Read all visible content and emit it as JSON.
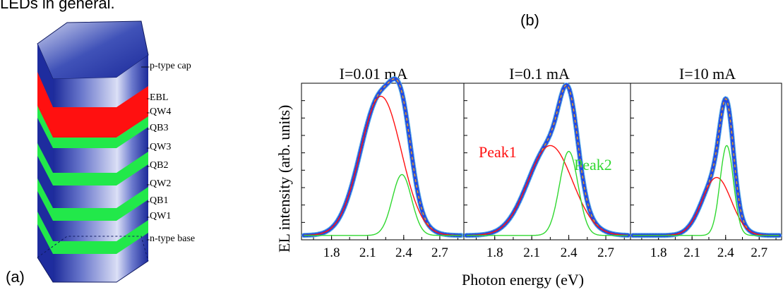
{
  "intro_text": "LEDs in general.",
  "panel_a": {
    "label": "(a)",
    "layers": [
      "p-type cap",
      "EBL",
      "QW4",
      "QB3",
      "QW3",
      "QB2",
      "QW2",
      "QB1",
      "QW1",
      "n-type base"
    ],
    "colors": {
      "barrier": "#3a4bb8",
      "qw": "#22e84a",
      "ebl": "#ff1010"
    }
  },
  "panel_b": {
    "label": "(b)",
    "xlabel": "Photon energy (eV)",
    "ylabel": "EL intensity (arb. units)",
    "peak1_label": "Peak1",
    "peak2_label": "Peak2",
    "colors": {
      "data": "#2448e0",
      "data_edge": "#5ab0e8",
      "fit": "#e8a020",
      "peak1": "#ff1010",
      "peak2": "#30d830"
    }
  },
  "chart_data": [
    {
      "type": "line",
      "title": "I=0.01 mA",
      "xlabel": "Photon energy (eV)",
      "ylabel": "EL intensity (arb. units)",
      "xlim": [
        1.55,
        2.9
      ],
      "ylim": [
        0,
        1.08
      ],
      "xticks": [
        "1.8",
        "2.1",
        "2.4",
        "2.7"
      ],
      "series": [
        {
          "name": "Peak1",
          "values": [
            {
              "x": 1.6,
              "y": 0.0
            },
            {
              "x": 1.8,
              "y": 0.04
            },
            {
              "x": 2.0,
              "y": 0.55
            },
            {
              "x": 2.2,
              "y": 0.96
            },
            {
              "x": 2.4,
              "y": 0.55
            },
            {
              "x": 2.6,
              "y": 0.04
            },
            {
              "x": 2.85,
              "y": 0.0
            }
          ]
        },
        {
          "name": "Peak2",
          "values": [
            {
              "x": 2.2,
              "y": 0.0
            },
            {
              "x": 2.3,
              "y": 0.18
            },
            {
              "x": 2.38,
              "y": 0.42
            },
            {
              "x": 2.46,
              "y": 0.18
            },
            {
              "x": 2.58,
              "y": 0.0
            }
          ]
        }
      ]
    },
    {
      "type": "line",
      "title": "I=0.1 mA",
      "xlim": [
        1.55,
        2.9
      ],
      "ylim": [
        0,
        1.08
      ],
      "xticks": [
        "1.8",
        "2.1",
        "2.4",
        "2.7"
      ],
      "series": [
        {
          "name": "Peak1",
          "values": [
            {
              "x": 1.8,
              "y": 0.02
            },
            {
              "x": 2.05,
              "y": 0.38
            },
            {
              "x": 2.25,
              "y": 0.62
            },
            {
              "x": 2.45,
              "y": 0.38
            },
            {
              "x": 2.7,
              "y": 0.02
            }
          ]
        },
        {
          "name": "Peak2",
          "values": [
            {
              "x": 2.25,
              "y": 0.05
            },
            {
              "x": 2.33,
              "y": 0.38
            },
            {
              "x": 2.4,
              "y": 0.58
            },
            {
              "x": 2.48,
              "y": 0.38
            },
            {
              "x": 2.58,
              "y": 0.02
            }
          ]
        }
      ]
    },
    {
      "type": "line",
      "title": "I=10 mA",
      "xlim": [
        1.55,
        2.9
      ],
      "ylim": [
        0,
        1.08
      ],
      "xticks": [
        "1.8",
        "2.1",
        "2.4",
        "2.7"
      ],
      "series": [
        {
          "name": "Peak1",
          "values": [
            {
              "x": 1.9,
              "y": 0.02
            },
            {
              "x": 2.15,
              "y": 0.25
            },
            {
              "x": 2.32,
              "y": 0.4
            },
            {
              "x": 2.48,
              "y": 0.25
            },
            {
              "x": 2.7,
              "y": 0.02
            }
          ]
        },
        {
          "name": "Peak2",
          "values": [
            {
              "x": 2.28,
              "y": 0.05
            },
            {
              "x": 2.35,
              "y": 0.4
            },
            {
              "x": 2.41,
              "y": 0.62
            },
            {
              "x": 2.47,
              "y": 0.4
            },
            {
              "x": 2.55,
              "y": 0.04
            }
          ]
        }
      ]
    }
  ]
}
